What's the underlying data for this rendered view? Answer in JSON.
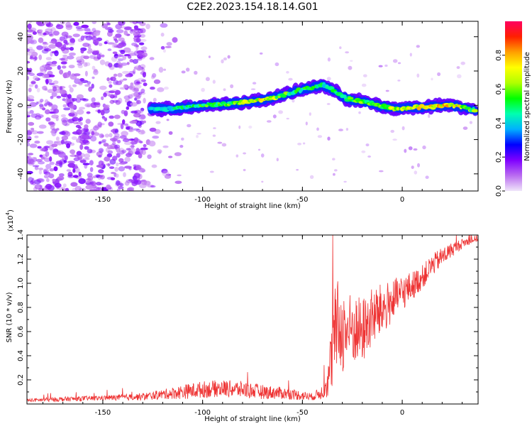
{
  "figure_title": "C2E2.2023.154.18.14.G01",
  "colors": {
    "snr_line": "#ee3333",
    "background": "#ffffff",
    "axis": "#000000",
    "cmap": [
      "#f0e6fa",
      "#ba6cf0",
      "#7f00ff",
      "#0000ff",
      "#00b0ff",
      "#00ffb0",
      "#00ff00",
      "#b0ff00",
      "#ffff00",
      "#ffa000",
      "#ff2000",
      "#ff0060"
    ]
  },
  "chart_data": [
    {
      "type": "heatmap",
      "title": "",
      "xlabel": "Height of straight line (km)",
      "ylabel": "Frequency (Hz)",
      "xlim": [
        -188,
        38
      ],
      "ylim": [
        -50,
        49
      ],
      "xticks": [
        -150,
        -100,
        -50,
        0
      ],
      "xtick_labels": [
        "-150",
        "-100",
        "-50",
        "0"
      ],
      "yticks": [
        -40,
        -20,
        0,
        20,
        40
      ],
      "ytick_labels": [
        "-40",
        "-20",
        "0",
        "20",
        "40"
      ],
      "grid": false,
      "colorbar": {
        "label": "Normalized spectral amplitude",
        "range": [
          0,
          1
        ],
        "ticks": [
          0.0,
          0.2,
          0.4,
          0.6,
          0.8
        ],
        "tick_labels": [
          "0.0",
          "0.2",
          "0.4",
          "0.6",
          "0.8"
        ]
      },
      "noise_region": {
        "x_range": [
          -188,
          -112
        ],
        "y_range": [
          -50,
          49
        ],
        "amplitude_range": [
          0.05,
          0.2
        ]
      },
      "ridge": [
        {
          "x": -126,
          "y": -2,
          "amp": 0.4
        },
        {
          "x": -115,
          "y": -2,
          "amp": 0.45
        },
        {
          "x": -100,
          "y": 0,
          "amp": 0.55
        },
        {
          "x": -85,
          "y": 1,
          "amp": 0.6
        },
        {
          "x": -70,
          "y": 3,
          "amp": 0.75
        },
        {
          "x": -60,
          "y": 6,
          "amp": 0.6
        },
        {
          "x": -50,
          "y": 9,
          "amp": 0.55
        },
        {
          "x": -40,
          "y": 12,
          "amp": 0.5
        },
        {
          "x": -35,
          "y": 9,
          "amp": 0.5
        },
        {
          "x": -28,
          "y": 4,
          "amp": 0.55
        },
        {
          "x": -15,
          "y": 1,
          "amp": 0.6
        },
        {
          "x": -5,
          "y": -2,
          "amp": 0.7
        },
        {
          "x": 10,
          "y": -1,
          "amp": 0.75
        },
        {
          "x": 25,
          "y": 0,
          "amp": 0.8
        },
        {
          "x": 37,
          "y": -3,
          "amp": 0.6
        }
      ]
    },
    {
      "type": "line",
      "title": "",
      "xlabel": "Height of straight line (km)",
      "ylabel": "SNR (10 * v/v)",
      "y_multiplier": "(x10^4)",
      "y_multiplier_base": "(x10",
      "y_multiplier_exp": "4",
      "xlim": [
        -188,
        38
      ],
      "ylim": [
        0,
        1.4
      ],
      "xticks": [
        -150,
        -100,
        -50,
        0
      ],
      "xtick_labels": [
        "-150",
        "-100",
        "-50",
        "0"
      ],
      "yticks": [
        0.2,
        0.4,
        0.6,
        0.8,
        1.0,
        1.2,
        1.4
      ],
      "ytick_labels": [
        "0.2",
        "0.4",
        "0.6",
        "0.8",
        "1.0",
        "1.2",
        "1.4"
      ],
      "grid": false,
      "series": [
        {
          "x": [
            -188,
            -170,
            -150,
            -130,
            -120,
            -110,
            -100,
            -90,
            -80,
            -70,
            -60,
            -50,
            -45,
            -40,
            -37,
            -35,
            -33,
            -30,
            -25,
            -20,
            -15,
            -10,
            -5,
            0,
            5,
            10,
            15,
            20,
            25,
            30,
            35,
            38
          ],
          "y": [
            0.03,
            0.04,
            0.05,
            0.06,
            0.08,
            0.1,
            0.12,
            0.13,
            0.12,
            0.1,
            0.09,
            0.07,
            0.06,
            0.1,
            0.2,
            0.45,
            0.65,
            0.6,
            0.62,
            0.6,
            0.72,
            0.78,
            0.85,
            0.92,
            0.98,
            1.05,
            1.15,
            1.22,
            1.28,
            1.33,
            1.36,
            1.37
          ],
          "spread": [
            0.015,
            0.02,
            0.02,
            0.03,
            0.04,
            0.06,
            0.07,
            0.07,
            0.07,
            0.06,
            0.05,
            0.04,
            0.03,
            0.06,
            0.15,
            0.35,
            0.4,
            0.35,
            0.3,
            0.28,
            0.25,
            0.22,
            0.18,
            0.15,
            0.12,
            0.1,
            0.09,
            0.08,
            0.06,
            0.04,
            0.03,
            0.03
          ]
        }
      ]
    }
  ]
}
